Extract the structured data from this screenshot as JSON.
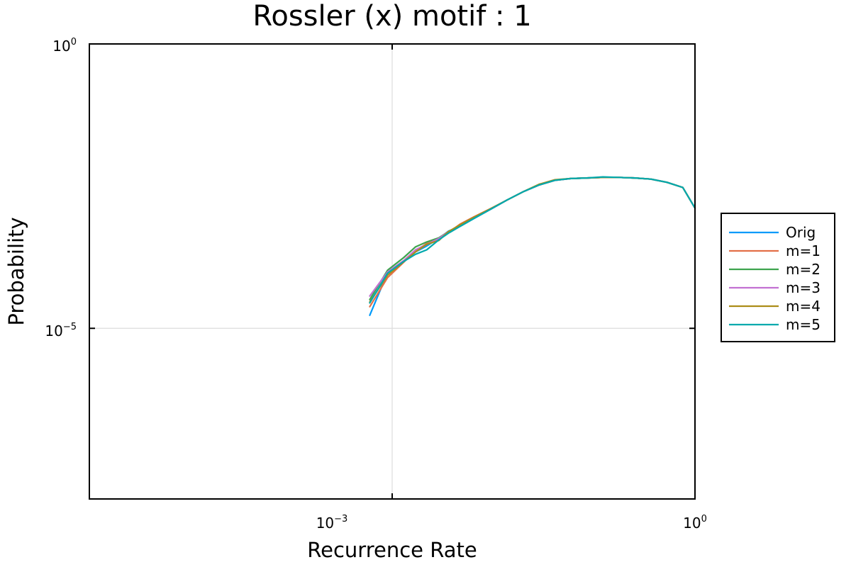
{
  "chart_data": {
    "type": "line",
    "title": "Rossler (x) motif : 1",
    "xlabel": "Recurrence Rate",
    "ylabel": "Probability",
    "xscale": "log",
    "yscale": "log",
    "xlim": [
      1e-06,
      1
    ],
    "ylim": [
      1e-08,
      1
    ],
    "grid": true,
    "legend_position": "outside-right",
    "x_ticks": [
      {
        "base": "10",
        "exp": "−3",
        "value": 0.001
      },
      {
        "base": "10",
        "exp": "0",
        "value": 1
      }
    ],
    "y_ticks": [
      {
        "base": "10",
        "exp": "−5",
        "value": 1e-05
      },
      {
        "base": "10",
        "exp": "0",
        "value": 1
      }
    ],
    "x": [
      0.0006,
      0.0009,
      0.0013,
      0.0017,
      0.0022,
      0.0029,
      0.0036,
      0.0047,
      0.0065,
      0.0095,
      0.0137,
      0.0197,
      0.0284,
      0.0409,
      0.0589,
      0.0849,
      0.1223,
      0.1761,
      0.2536,
      0.3652,
      0.5258,
      0.7571,
      1.0
    ],
    "series": [
      {
        "name": "Orig",
        "color": "#009AFA",
        "values": [
          1.7e-05,
          9.5e-05,
          0.00015,
          0.00022,
          0.00028,
          0.00038,
          0.00051,
          0.00062,
          0.00086,
          0.00125,
          0.0018,
          0.0025,
          0.0033,
          0.004,
          0.0043,
          0.0044,
          0.0045,
          0.0045,
          0.0044,
          0.0042,
          0.0037,
          0.003,
          0.0013
        ]
      },
      {
        "name": "m=1",
        "color": "#E36F47",
        "values": [
          2.4e-05,
          7.8e-05,
          0.000145,
          0.00023,
          0.00031,
          0.00037,
          0.00048,
          0.00068,
          0.00092,
          0.00128,
          0.0018,
          0.0025,
          0.0033,
          0.004,
          0.0043,
          0.0044,
          0.0045,
          0.0045,
          0.0044,
          0.0042,
          0.0037,
          0.003,
          0.0013
        ]
      },
      {
        "name": "m=2",
        "color": "#3EA44E",
        "values": [
          3.2e-05,
          0.000105,
          0.000175,
          0.00027,
          0.00033,
          0.00039,
          0.0005,
          0.00065,
          0.00089,
          0.00126,
          0.0018,
          0.0025,
          0.0033,
          0.004,
          0.0043,
          0.0044,
          0.0045,
          0.0045,
          0.0044,
          0.0042,
          0.0037,
          0.003,
          0.0013
        ]
      },
      {
        "name": "m=3",
        "color": "#C271D2",
        "values": [
          3.7e-05,
          9.8e-05,
          0.000155,
          0.00024,
          0.0003,
          0.00038,
          0.0005,
          0.00063,
          0.00087,
          0.00125,
          0.0018,
          0.0025,
          0.0033,
          0.004,
          0.0043,
          0.0044,
          0.0045,
          0.0045,
          0.0044,
          0.0042,
          0.0037,
          0.003,
          0.0013
        ]
      },
      {
        "name": "m=4",
        "color": "#AC8D18",
        "values": [
          2.9e-05,
          8.6e-05,
          0.000148,
          0.00022,
          0.0003,
          0.00035,
          0.0005,
          0.00066,
          0.0009,
          0.00127,
          0.0018,
          0.0025,
          0.0034,
          0.0041,
          0.0043,
          0.0044,
          0.0045,
          0.0045,
          0.0044,
          0.0042,
          0.0037,
          0.003,
          0.0013
        ]
      },
      {
        "name": "m=5",
        "color": "#00A9AD",
        "values": [
          2.8e-05,
          9.3e-05,
          0.00015,
          0.0002,
          0.00024,
          0.00036,
          0.00047,
          0.00062,
          0.00086,
          0.00125,
          0.0018,
          0.0025,
          0.0033,
          0.004,
          0.0043,
          0.0044,
          0.0046,
          0.0045,
          0.0044,
          0.0042,
          0.0037,
          0.003,
          0.0013
        ]
      }
    ]
  }
}
